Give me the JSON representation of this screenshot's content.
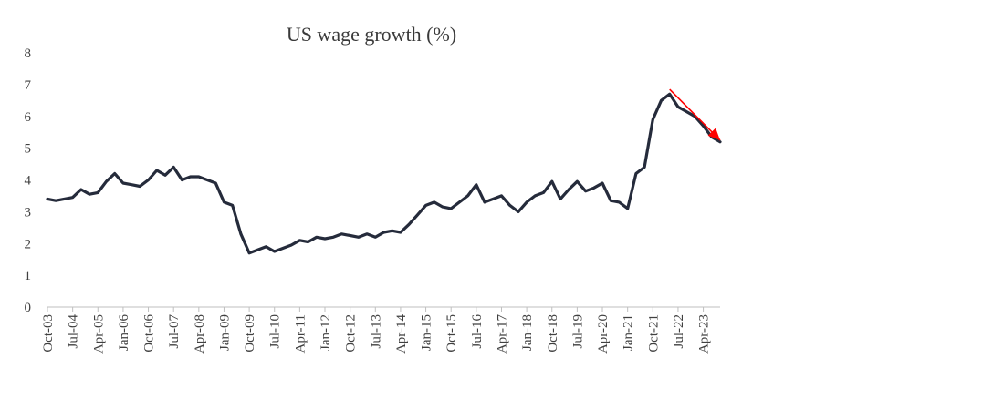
{
  "chart_data": {
    "type": "line",
    "title": "US wage growth (%)",
    "xlabel": "",
    "ylabel": "",
    "ylim": [
      0,
      8
    ],
    "yticks": [
      "0",
      "1",
      "2",
      "3",
      "4",
      "5",
      "6",
      "7",
      "8"
    ],
    "grid": false,
    "legend": "none",
    "xticks": [
      "Oct-03",
      "Jul-04",
      "Apr-05",
      "Jan-06",
      "Oct-06",
      "Jul-07",
      "Apr-08",
      "Jan-09",
      "Oct-09",
      "Jul-10",
      "Apr-11",
      "Jan-12",
      "Oct-12",
      "Jul-13",
      "Apr-14",
      "Jan-15",
      "Oct-15",
      "Jul-16",
      "Apr-17",
      "Jan-18",
      "Oct-18",
      "Jul-19",
      "Apr-20",
      "Jan-21",
      "Oct-21",
      "Jul-22",
      "Apr-23"
    ],
    "colors": {
      "series": "#252b3b",
      "trend_arrow": "#ff0000"
    },
    "series": [
      {
        "x": [
          "Oct-03",
          "Jan-04",
          "Apr-04",
          "Jul-04",
          "Oct-04",
          "Jan-05",
          "Apr-05",
          "Jul-05",
          "Oct-05",
          "Jan-06",
          "Apr-06",
          "Jul-06",
          "Oct-06",
          "Jan-07",
          "Apr-07",
          "Jul-07",
          "Oct-07",
          "Jan-08",
          "Apr-08",
          "Jul-08",
          "Oct-08",
          "Jan-09",
          "Apr-09",
          "Jul-09",
          "Oct-09",
          "Jan-10",
          "Apr-10",
          "Jul-10",
          "Oct-10",
          "Jan-11",
          "Apr-11",
          "Jul-11",
          "Oct-11",
          "Jan-12",
          "Apr-12",
          "Jul-12",
          "Oct-12",
          "Jan-13",
          "Apr-13",
          "Jul-13",
          "Oct-13",
          "Jan-14",
          "Apr-14",
          "Jul-14",
          "Oct-14",
          "Jan-15",
          "Apr-15",
          "Jul-15",
          "Oct-15",
          "Jan-16",
          "Apr-16",
          "Jul-16",
          "Oct-16",
          "Jan-17",
          "Apr-17",
          "Jul-17",
          "Oct-17",
          "Jan-18",
          "Apr-18",
          "Jul-18",
          "Oct-18",
          "Jan-19",
          "Apr-19",
          "Jul-19",
          "Oct-19",
          "Jan-20",
          "Apr-20",
          "Jul-20",
          "Oct-20",
          "Jan-21",
          "Apr-21",
          "Jul-21",
          "Oct-21",
          "Jan-22",
          "Apr-22",
          "Jul-22",
          "Oct-22",
          "Jan-23",
          "Apr-23",
          "Jul-23",
          "Oct-23"
        ],
        "values": [
          3.4,
          3.35,
          3.4,
          3.45,
          3.7,
          3.55,
          3.6,
          3.95,
          4.2,
          3.9,
          3.85,
          3.8,
          4.0,
          4.3,
          4.15,
          4.4,
          4.0,
          4.1,
          4.1,
          4.0,
          3.9,
          3.3,
          3.2,
          2.3,
          1.7,
          1.8,
          1.9,
          1.75,
          1.85,
          1.95,
          2.1,
          2.05,
          2.2,
          2.15,
          2.2,
          2.3,
          2.25,
          2.2,
          2.3,
          2.2,
          2.35,
          2.4,
          2.35,
          2.6,
          2.9,
          3.2,
          3.3,
          3.15,
          3.1,
          3.3,
          3.5,
          3.85,
          3.3,
          3.4,
          3.5,
          3.2,
          3.0,
          3.3,
          3.5,
          3.6,
          3.95,
          3.4,
          3.7,
          3.95,
          3.65,
          3.75,
          3.9,
          3.35,
          3.3,
          3.1,
          4.2,
          4.4,
          5.9,
          6.5,
          6.7,
          6.3,
          6.15,
          6.0,
          5.7,
          5.35,
          5.2
        ]
      }
    ],
    "annotations": [
      {
        "type": "arrow",
        "description": "downward trend arrow",
        "from": [
          "Apr-22",
          6.85
        ],
        "to": [
          "Oct-23",
          5.25
        ]
      }
    ]
  }
}
